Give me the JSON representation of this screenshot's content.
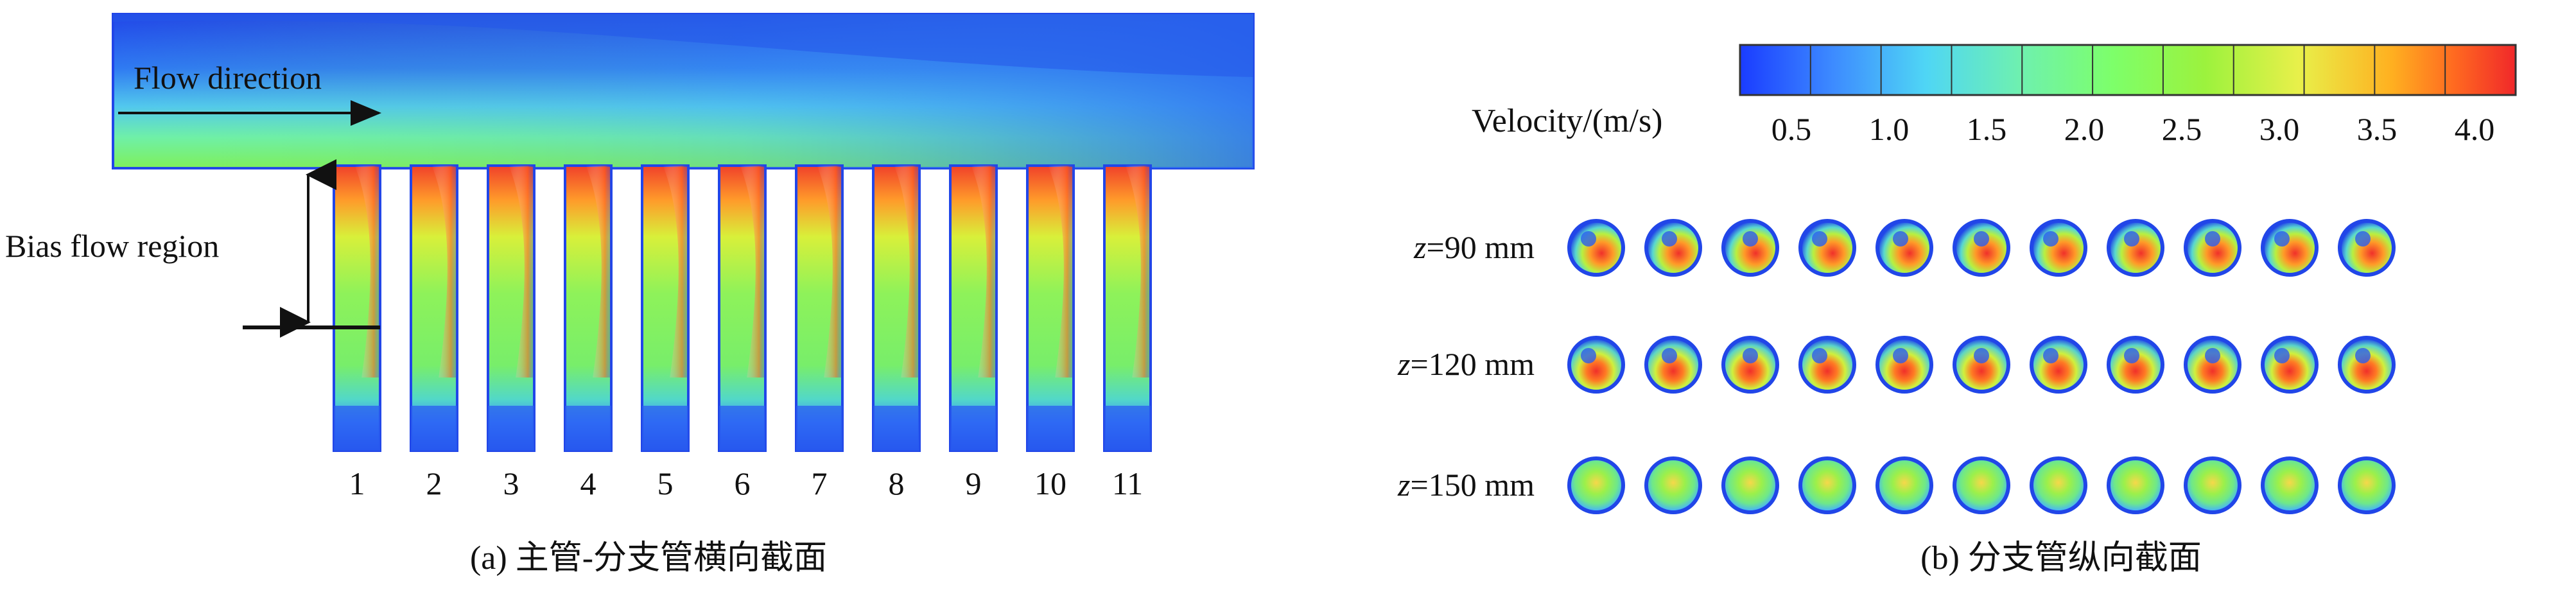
{
  "panel_a": {
    "flow_direction_label": "Flow direction",
    "bias_flow_label": "Bias flow region",
    "branch_numbers": [
      "1",
      "2",
      "3",
      "4",
      "5",
      "6",
      "7",
      "8",
      "9",
      "10",
      "11"
    ],
    "caption": "(a) 主管-分支管横向截面"
  },
  "legend": {
    "label": "Velocity/(m/s)",
    "ticks": [
      "0.5",
      "1.0",
      "1.5",
      "2.0",
      "2.5",
      "3.0",
      "3.5",
      "4.0"
    ],
    "colors": [
      "#1a3cff",
      "#3d8bff",
      "#4fd6f5",
      "#6ef0b0",
      "#7dff6a",
      "#9cf23d",
      "#c8f03a",
      "#f2f050",
      "#ffb020",
      "#ff6a20",
      "#f0282a"
    ]
  },
  "panel_b": {
    "rows": [
      {
        "z": "z",
        "label": "=90 mm"
      },
      {
        "z": "z",
        "label": "=120 mm"
      },
      {
        "z": "z",
        "label": "=150 mm"
      }
    ],
    "caption": "(b) 分支管纵向截面"
  },
  "colors": {
    "main_pipe_fluid": "#7ff05a",
    "pipe_wall": "#2146e8",
    "low_velocity": "#3d7cff",
    "high_velocity": "#f0322a"
  }
}
